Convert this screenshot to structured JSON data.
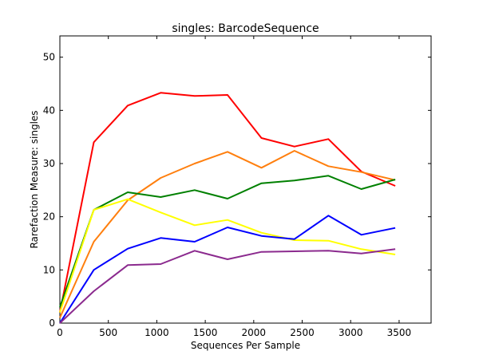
{
  "chart_data": {
    "type": "line",
    "title": "singles: BarcodeSequence",
    "xlabel": "Sequences Per Sample",
    "ylabel": "Rarefaction Measure: singles",
    "xlim": [
      0,
      3830
    ],
    "ylim": [
      0,
      54
    ],
    "xticks": [
      0,
      500,
      1000,
      1500,
      2000,
      2500,
      3000,
      3500
    ],
    "yticks": [
      0,
      10,
      20,
      30,
      40,
      50
    ],
    "grid": false,
    "x": [
      0,
      350,
      700,
      1040,
      1390,
      1730,
      2080,
      2420,
      2770,
      3110,
      3460
    ],
    "series": [
      {
        "color": "#ff0000",
        "values": [
          2.0,
          34.0,
          40.9,
          43.3,
          42.7,
          42.9,
          34.8,
          33.2,
          34.6,
          28.5,
          25.8
        ]
      },
      {
        "color": "#ff7f0e",
        "values": [
          1.0,
          15.3,
          23.1,
          27.3,
          30.0,
          32.2,
          29.2,
          32.4,
          29.5,
          28.4,
          26.9
        ]
      },
      {
        "color": "#008000",
        "values": [
          3.0,
          21.3,
          24.6,
          23.7,
          25.0,
          23.4,
          26.3,
          26.8,
          27.7,
          25.2,
          27.0
        ]
      },
      {
        "color": "#ffff00",
        "values": [
          2.0,
          21.3,
          23.3,
          20.8,
          18.4,
          19.4,
          17.0,
          15.6,
          15.5,
          13.9,
          12.9
        ]
      },
      {
        "color": "#0000ff",
        "values": [
          0.0,
          10.0,
          14.0,
          16.0,
          15.3,
          18.0,
          16.4,
          15.8,
          20.2,
          16.6,
          17.9
        ]
      },
      {
        "color": "#8b2a8e",
        "values": [
          0.0,
          6.0,
          10.9,
          11.1,
          13.6,
          12.0,
          13.4,
          13.5,
          13.6,
          13.1,
          13.9
        ]
      }
    ]
  }
}
